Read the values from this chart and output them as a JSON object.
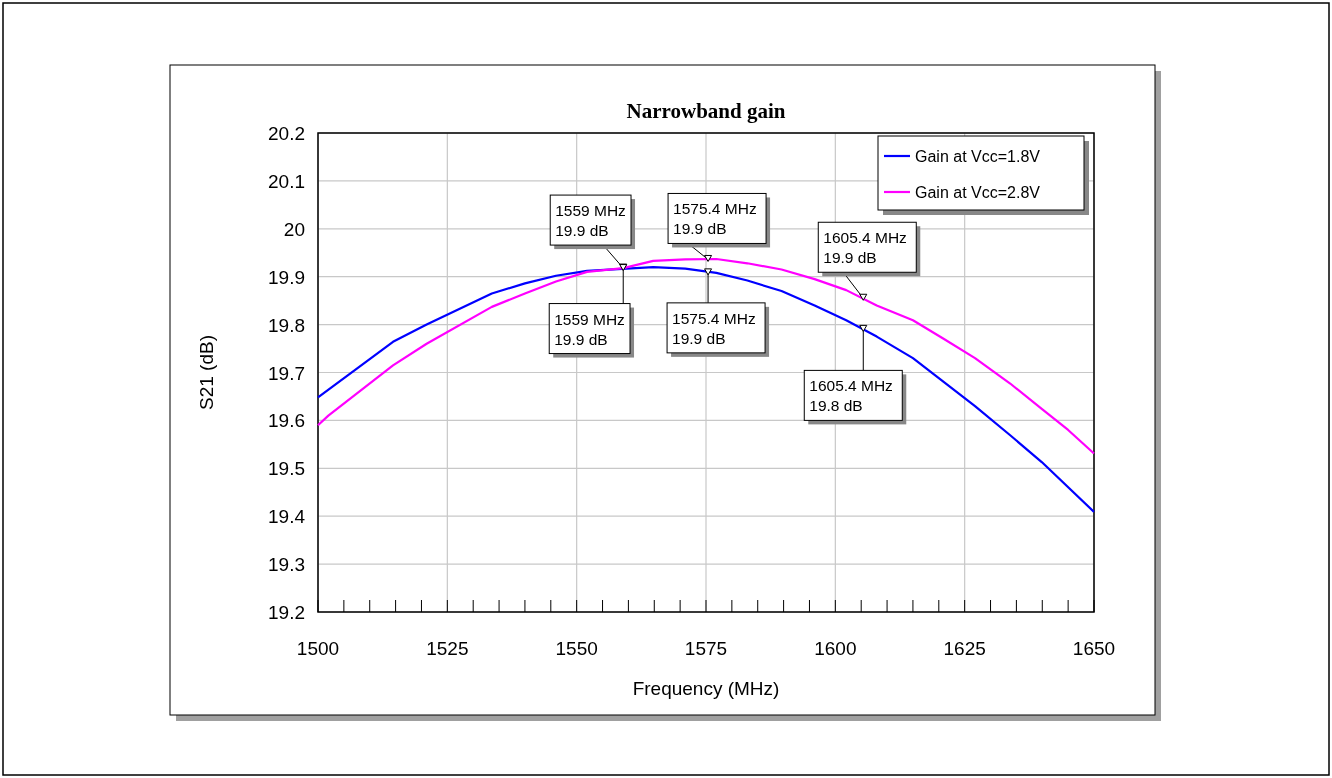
{
  "chart_data": {
    "type": "line",
    "title": "Narrowband gain",
    "xlabel": "Frequency (MHz)",
    "ylabel": "S21 (dB)",
    "xlim": [
      1500,
      1650
    ],
    "xticks": [
      1500,
      {
        "value": 1505,
        "label": null
      },
      {
        "value": 1510,
        "label": null
      },
      {
        "value": 1515,
        "label": null
      },
      {
        "value": 1520,
        "label": null
      },
      1525,
      {
        "value": 1530,
        "label": null
      },
      {
        "value": 1535,
        "label": null
      },
      {
        "value": 1540,
        "label": null
      },
      {
        "value": 1545,
        "label": null
      },
      1550,
      {
        "value": 1555,
        "label": null
      },
      {
        "value": 1560,
        "label": null
      },
      {
        "value": 1565,
        "label": null
      },
      {
        "value": 1570,
        "label": null
      },
      1575,
      {
        "value": 1580,
        "label": null
      },
      {
        "value": 1585,
        "label": null
      },
      {
        "value": 1590,
        "label": null
      },
      {
        "value": 1595,
        "label": null
      },
      1600,
      {
        "value": 1605,
        "label": null
      },
      {
        "value": 1610,
        "label": null
      },
      {
        "value": 1615,
        "label": null
      },
      {
        "value": 1620,
        "label": null
      },
      1625,
      {
        "value": 1630,
        "label": null
      },
      {
        "value": 1635,
        "label": null
      },
      {
        "value": 1640,
        "label": null
      },
      {
        "value": 1645,
        "label": null
      },
      1650
    ],
    "ylim": [
      19.2,
      20.2
    ],
    "yticks": [
      19.2,
      19.3,
      19.4,
      19.5,
      19.6,
      19.7,
      19.8,
      19.9,
      20,
      20.1,
      20.2
    ],
    "grid": true,
    "legend": "top right",
    "marker": "none",
    "line_style": "solid",
    "series": [
      {
        "name": "Gain at Vcc=1.8V",
        "color": "#0000ff",
        "x": [
          1500,
          1514.5,
          1521,
          1533.6,
          1540,
          1546,
          1552,
          1564.8,
          1571,
          1577,
          1583,
          1589.6,
          1596,
          1602.1,
          1608,
          1615,
          1621,
          1627,
          1633.8,
          1639.9,
          1650
        ],
        "values": [
          19.648,
          19.764,
          19.8,
          19.865,
          19.886,
          19.902,
          19.912,
          19.92,
          19.917,
          19.908,
          19.892,
          19.87,
          19.84,
          19.809,
          19.775,
          19.73,
          19.68,
          19.63,
          19.569,
          19.513,
          19.409
        ]
      },
      {
        "name": "Gain at Vcc=2.8V",
        "color": "#ff00ff",
        "x": [
          1500,
          1502,
          1514.5,
          1521,
          1533.6,
          1540,
          1546,
          1552,
          1559,
          1564.8,
          1571,
          1577,
          1583,
          1589.6,
          1596,
          1602.1,
          1608,
          1615,
          1621,
          1627,
          1633.8,
          1639.9,
          1645,
          1650
        ],
        "values": [
          19.59,
          19.61,
          19.715,
          19.76,
          19.837,
          19.865,
          19.89,
          19.91,
          19.918,
          19.933,
          19.936,
          19.937,
          19.928,
          19.915,
          19.895,
          19.872,
          19.84,
          19.809,
          19.77,
          19.73,
          19.677,
          19.624,
          19.58,
          19.531
        ]
      }
    ],
    "annotations": [
      {
        "text": "1559 MHz\n19.9 dB",
        "x": 1559,
        "y": 19.918
      },
      {
        "text": "1559 MHz\n19.9 dB",
        "x": 1559,
        "y": 19.917
      },
      {
        "text": "1575.4 MHz\n19.9 dB",
        "x": 1575.4,
        "y": 19.936
      },
      {
        "text": "1575.4 MHz\n19.9 dB",
        "x": 1575.4,
        "y": 19.908
      },
      {
        "text": "1605.4 MHz\n19.9 dB",
        "x": 1605.4,
        "y": 19.855
      },
      {
        "text": "1605.4 MHz\n19.8 dB",
        "x": 1605.4,
        "y": 19.79
      }
    ]
  }
}
